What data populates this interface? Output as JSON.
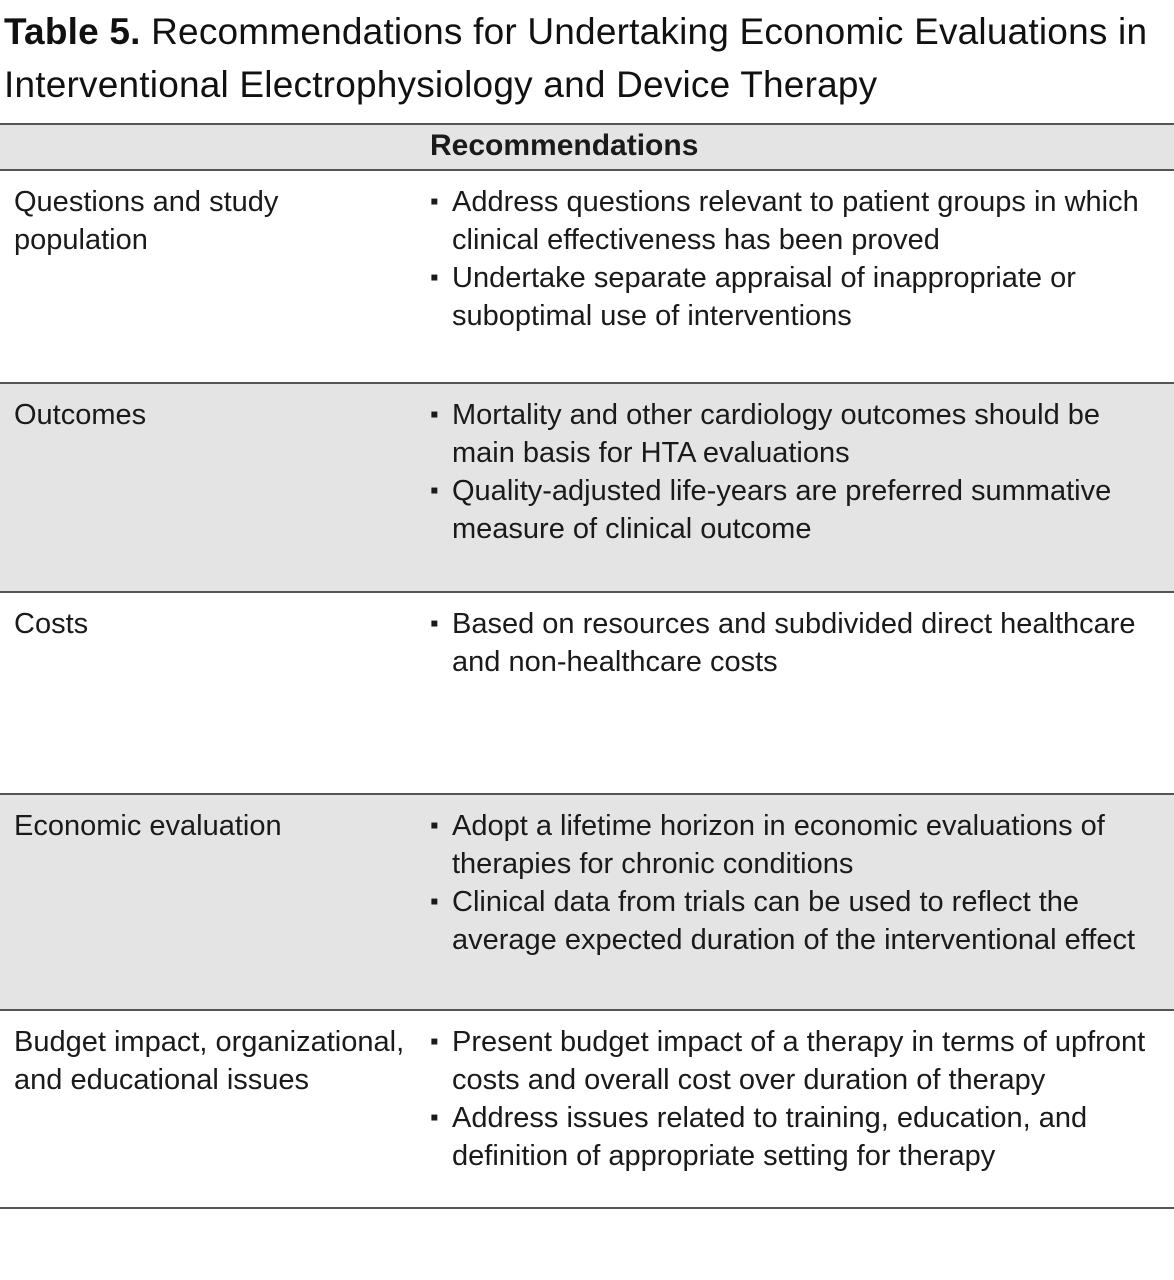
{
  "title": {
    "label": "Table 5.",
    "text": " Recommendations for Undertaking Economic Evaluations in Interventional Electrophysiology and Device Therapy"
  },
  "icons": {
    "bullet": "▪"
  },
  "colors": {
    "row_shade": "#e4e4e4",
    "border": "#555555",
    "text": "#1a1a1a"
  },
  "table": {
    "header": {
      "col1": "",
      "col2": "Recommendations"
    },
    "rows": [
      {
        "label": "Questions and study population",
        "shaded": false,
        "bullets": [
          "Address questions relevant to patient groups in which clinical effectiveness has been proved",
          "Undertake separate appraisal of inappropriate or suboptimal use of interventions"
        ]
      },
      {
        "label": "Outcomes",
        "shaded": true,
        "bullets": [
          "Mortality and other cardiology outcomes should be main basis for HTA evaluations",
          "Quality-adjusted life-years are preferred summative measure of clinical outcome"
        ]
      },
      {
        "label": "Costs",
        "shaded": false,
        "bullets": [
          "Based on resources and subdivided direct healthcare and non-healthcare costs"
        ]
      },
      {
        "label": "Economic evaluation",
        "shaded": true,
        "bullets": [
          "Adopt a lifetime horizon in economic evaluations of therapies for chronic conditions",
          "Clinical data from trials can be used to reflect the average expected duration of the interventional effect"
        ]
      },
      {
        "label": "Budget impact, organizational, and educational issues",
        "shaded": false,
        "bullets": [
          "Present budget impact of a therapy in terms of upfront costs and overall cost over duration of therapy",
          "Address issues related to training, education, and definition of appropriate setting for therapy"
        ]
      }
    ]
  }
}
